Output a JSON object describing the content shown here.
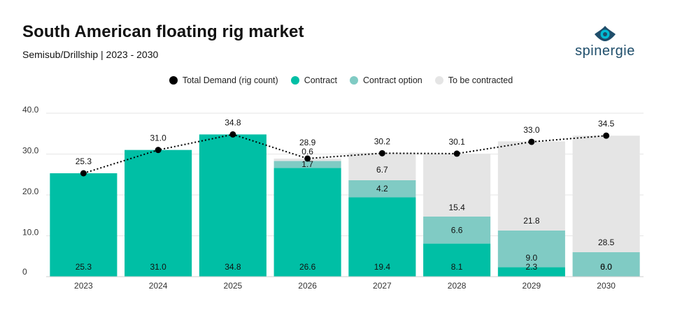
{
  "header": {
    "title": "South American floating rig market",
    "subtitle": "Semisub/Drillship | 2023 - 2030"
  },
  "logo": {
    "text": "spinergie",
    "icon": "eye-drop-icon"
  },
  "colors": {
    "contract": "#00bfa5",
    "contract_option": "#80cbc4",
    "to_be_contracted": "#e5e5e5",
    "demand": "#000000",
    "logo": "#1f4e6b",
    "logo_accent": "#00bcd4"
  },
  "legend": [
    {
      "label": "Total Demand (rig count)",
      "color": "#000000"
    },
    {
      "label": "Contract",
      "color": "#00bfa5"
    },
    {
      "label": "Contract option",
      "color": "#80cbc4"
    },
    {
      "label": "To be contracted",
      "color": "#e5e5e5"
    }
  ],
  "chart_data": {
    "type": "bar",
    "stacked": true,
    "title": "South American floating rig market",
    "subtitle": "Semisub/Drillship | 2023 - 2030",
    "categories": [
      "2023",
      "2024",
      "2025",
      "2026",
      "2027",
      "2028",
      "2029",
      "2030"
    ],
    "series": [
      {
        "name": "Contract",
        "values": [
          25.3,
          31.0,
          34.8,
          26.6,
          19.4,
          8.1,
          2.3,
          0.0
        ],
        "labels": [
          "25.3",
          "31.0",
          "34.8",
          "26.6",
          "19.4",
          "8.1",
          "2.3",
          "0.0"
        ]
      },
      {
        "name": "Contract option",
        "values": [
          0,
          0,
          0,
          1.7,
          4.2,
          6.6,
          9.0,
          6.0
        ],
        "labels": [
          "",
          "",
          "",
          "1.7",
          "4.2",
          "6.6",
          "9.0",
          "6.0"
        ]
      },
      {
        "name": "To be contracted",
        "values": [
          0,
          0,
          0,
          0.6,
          6.7,
          15.4,
          21.8,
          28.5
        ],
        "labels": [
          "",
          "",
          "",
          "0.6",
          "6.7",
          "15.4",
          "21.8",
          "28.5"
        ]
      }
    ],
    "line": {
      "name": "Total Demand (rig count)",
      "values": [
        25.3,
        31.0,
        34.8,
        28.9,
        30.2,
        30.1,
        33.0,
        34.5
      ],
      "labels": [
        "25.3",
        "31.0",
        "34.8",
        "28.9",
        "30.2",
        "30.1",
        "33.0",
        "34.5"
      ],
      "style": "dotted"
    },
    "ylim": [
      0,
      40
    ],
    "yticks": [
      "0",
      "10.0",
      "20.0",
      "30.0",
      "40.0"
    ],
    "grid": true,
    "legend_position": "top-center"
  }
}
